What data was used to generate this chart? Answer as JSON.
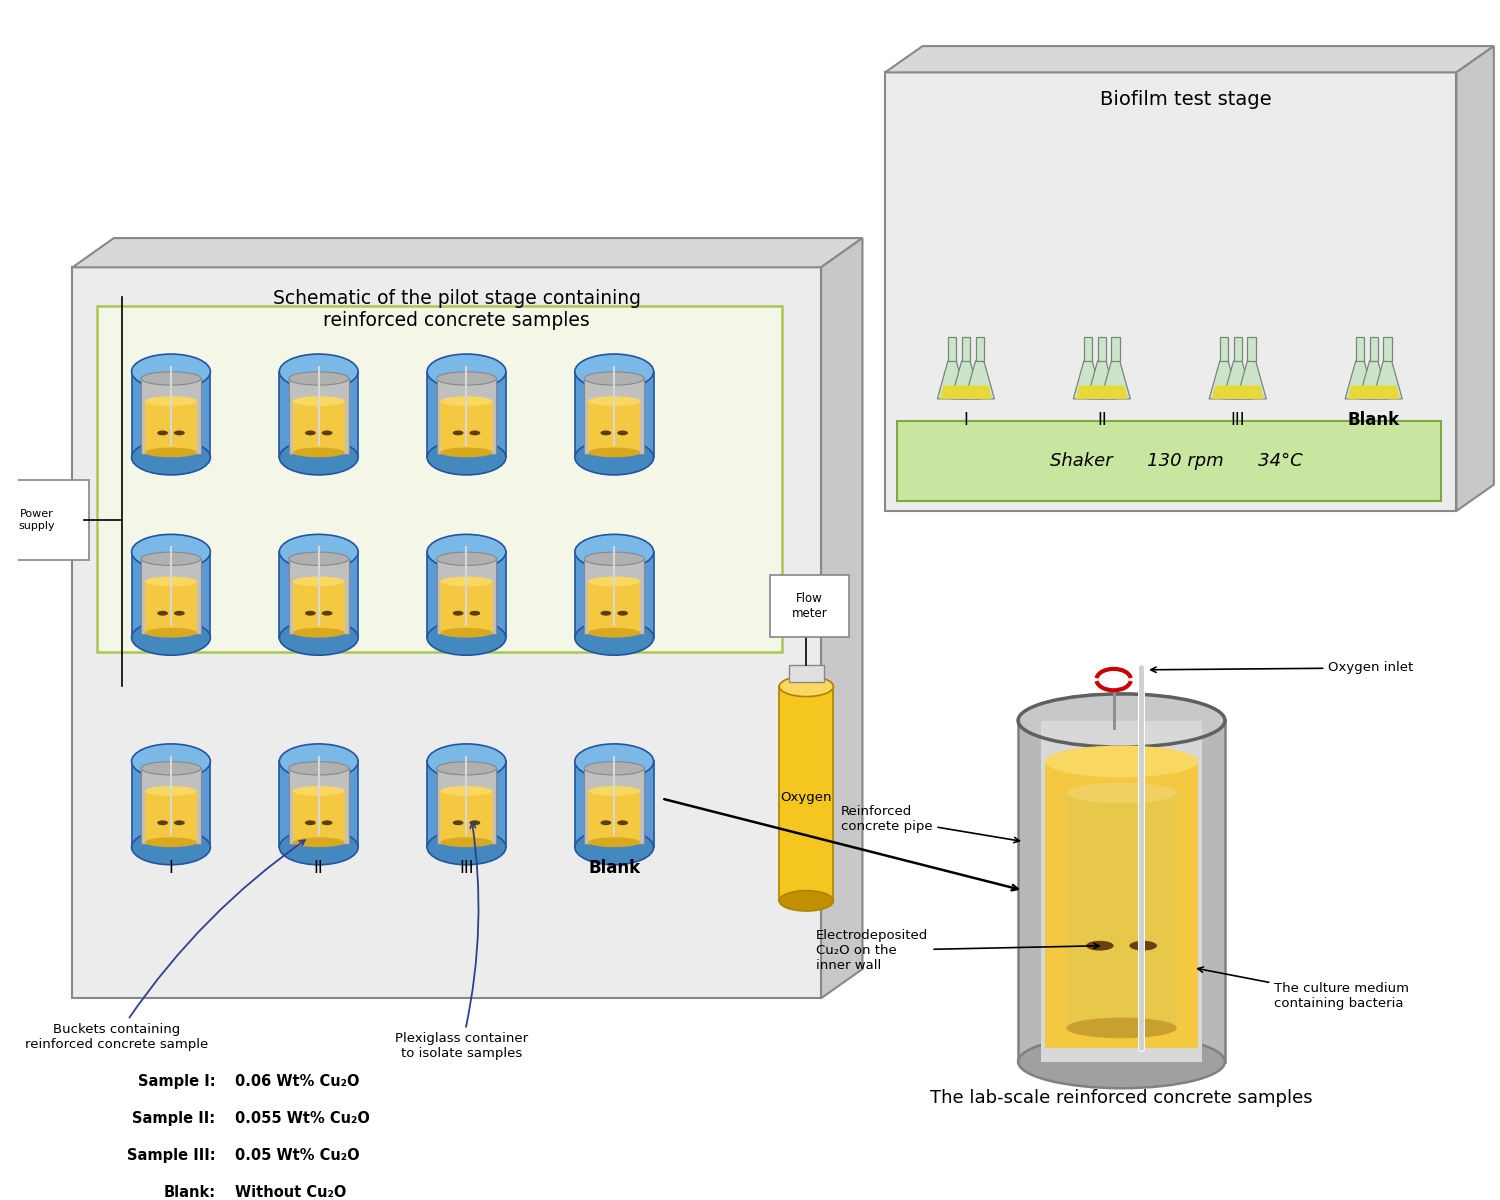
{
  "left_box_title": "Schematic of the pilot stage containing\nreinforced concrete samples",
  "right_box_title": "Biofilm test stage",
  "shaker_text": "Shaker      130 rpm      34°C",
  "flask_labels": [
    "I",
    "II",
    "III",
    "Blank"
  ],
  "bucket_labels": [
    "I",
    "II",
    "III",
    "Blank"
  ],
  "sample_labels": [
    [
      "Sample I:",
      "0.06 Wt% Cu₂O"
    ],
    [
      "Sample II:",
      "0.055 Wt% Cu₂O"
    ],
    [
      "Sample III:",
      "0.05 Wt% Cu₂O"
    ],
    [
      "Blank:",
      "Without Cu₂O"
    ]
  ],
  "annotation_bucket": "Buckets containing\nreinforced concrete sample",
  "annotation_plexiglass": "Plexiglass container\nto isolate samples",
  "annotation_reinforced": "Reinforced\nconcrete pipe",
  "annotation_electro": "Electrodeposited\nCu₂O on the\ninner wall",
  "annotation_culture": "The culture medium\ncontaining bacteria",
  "annotation_oxygen_inlet": "Oxygen inlet",
  "flowmeter_label": "Flow\nmeter",
  "oxygen_label": "Oxygen",
  "concrete_label": "The lab-scale reinforced concrete samples",
  "power_supply_label": "Power\nsupply",
  "bg_color": "#ffffff",
  "bucket_outer_color": "#5b9bd5",
  "bucket_liquid_color": "#f5c842",
  "shaker_bg": "#c8e6a0",
  "oxygen_color": "#f5c842"
}
